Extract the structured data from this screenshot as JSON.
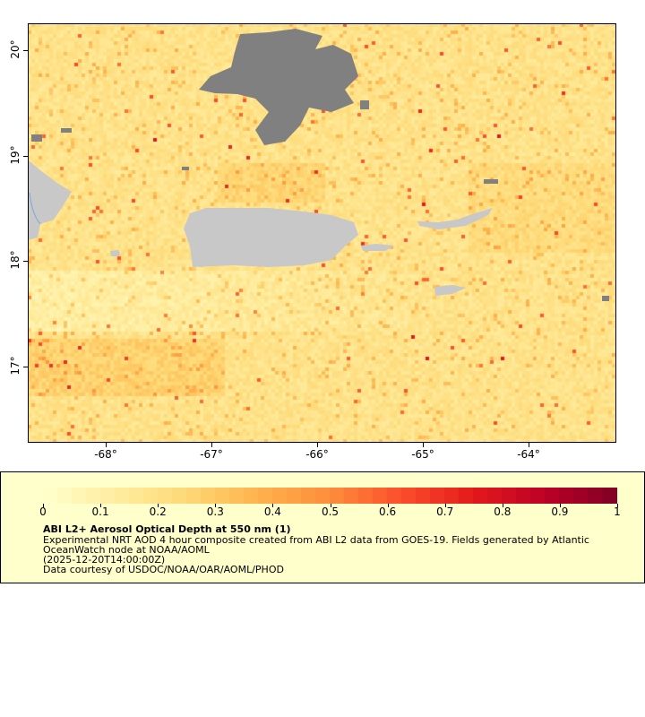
{
  "map": {
    "lon_range": [
      -68.74,
      -63.17
    ],
    "lat_range": [
      16.27,
      20.26
    ],
    "x_ticks": [
      "-68°",
      "-67°",
      "-66°",
      "-65°",
      "-64°"
    ],
    "y_ticks": [
      "20°",
      "19°",
      "18°",
      "17°"
    ],
    "land_color": "#c8c8c8",
    "no_data_color": "#808080"
  },
  "legend": {
    "colorbar_ticks": [
      "0",
      "0.1",
      "0.2",
      "0.3",
      "0.4",
      "0.5",
      "0.6",
      "0.7",
      "0.8",
      "0.9",
      "1"
    ],
    "colorbar_range": [
      0,
      1
    ],
    "colormap": [
      "#ffffcc",
      "#ffeda0",
      "#fed976",
      "#feb24c",
      "#fd8d3c",
      "#fc4e2a",
      "#e31a1c",
      "#bd0026",
      "#800026"
    ],
    "title": "ABI L2+ Aerosol Optical Depth at 550 nm (1)",
    "line1": "Experimental NRT AOD 4 hour composite created from ABI L2 data from GOES-19. Fields generated by Atlantic",
    "line2": "OceanWatch node at NOAA/AOML",
    "line3": "(2025-12-20T14:00:00Z)",
    "line4": "Data courtesy of USDOC/NOAA/OAR/AOML/PHOD"
  }
}
